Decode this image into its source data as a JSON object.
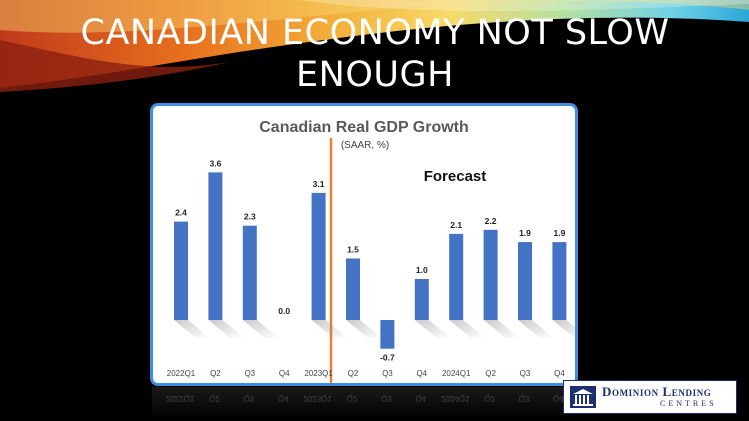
{
  "slide": {
    "title": "CANADIAN ECONOMY NOT SLOW ENOUGH"
  },
  "chart_data": {
    "type": "bar",
    "title": "Canadian Real GDP Growth",
    "subtitle": "(SAAR, %)",
    "annotation": "Forecast",
    "categories": [
      "2022Q1",
      "Q2",
      "Q3",
      "Q4",
      "2023Q1",
      "Q2",
      "Q3",
      "Q4",
      "2024Q1",
      "Q2",
      "Q3",
      "Q4"
    ],
    "values": [
      2.4,
      3.6,
      2.3,
      0.0,
      3.1,
      1.5,
      -0.7,
      1.0,
      2.1,
      2.2,
      1.9,
      1.9
    ],
    "ylim": [
      -0.7,
      3.6
    ],
    "grid": false,
    "bar_color": "#4472c4",
    "divider_color": "#ed7d31"
  },
  "logo": {
    "name": "Dominion Lending",
    "tagline": "CENTRES"
  },
  "colors": {
    "background": "#000000",
    "frame_border": "#3f8fe0",
    "logo_navy": "#1c2f6e"
  }
}
